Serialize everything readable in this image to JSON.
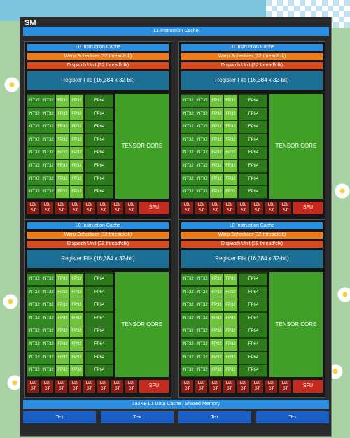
{
  "sm": {
    "title": "SM",
    "l1_instruction_cache": "L1 Instruction Cache",
    "l1_data_cache": "192KB L1 Data Cache / Shared Memory",
    "tex": [
      "Tex",
      "Tex",
      "Tex",
      "Tex"
    ]
  },
  "quadrant": {
    "l0_cache": "L0 Instruction Cache",
    "warp_scheduler": "Warp Scheduler (32 thread/clk)",
    "dispatch_unit": "Dispatch Unit (32 thread/clk)",
    "register_file": "Register File (16,384 x 32-bit)",
    "int32": "INT32",
    "fp32": "FP32",
    "fp64": "FP64",
    "tensor_core": "TENSOR CORE",
    "ldst": "LD/ ST",
    "sfu": "SFU",
    "rows": 8,
    "ldst_count": 8
  },
  "colors": {
    "int32": "#2f8b1e",
    "fp32": "#6fc43a",
    "fp64": "#2c7a19",
    "tensor": "#3f9f26",
    "cache": "#2a8ee0",
    "warp": "#f07c1a",
    "dispatch": "#d64a1e",
    "register": "#1c6f94",
    "ldst": "#8a1c14",
    "sfu": "#c62a1f",
    "tex": "#1a5fc6"
  }
}
